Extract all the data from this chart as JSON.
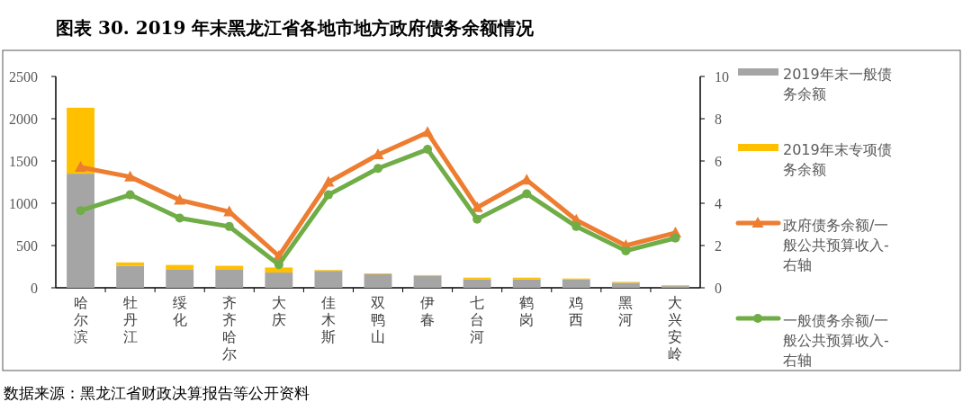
{
  "chart_data": {
    "type": "bar",
    "title": "图表 30. 2019 年末黑龙江省各地市地方政府债务余额情况",
    "stacked": true,
    "legend": "right",
    "grid": false,
    "categories": [
      "哈尔滨",
      "牡丹江",
      "绥化",
      "齐齐哈尔",
      "大庆",
      "佳木斯",
      "双鸭山",
      "伊春",
      "七台河",
      "鹤岗",
      "鸡西",
      "黑河",
      "大兴安岭"
    ],
    "ylim": [
      0,
      2500
    ],
    "yticks": [
      0,
      500,
      1000,
      1500,
      2000,
      2500
    ],
    "y2lim": [
      0,
      10
    ],
    "y2ticks": [
      0,
      2,
      4,
      6,
      8,
      10
    ],
    "series": [
      {
        "name": "2019年末一般债务余额",
        "color": "#a5a5a5",
        "values": [
          1350,
          260,
          220,
          220,
          180,
          200,
          160,
          140,
          100,
          100,
          100,
          60,
          20
        ]
      },
      {
        "name": "2019年末专项债务余额",
        "color": "#ffc000",
        "values": [
          780,
          40,
          50,
          40,
          60,
          10,
          10,
          10,
          20,
          20,
          10,
          10,
          10
        ]
      },
      {
        "name": "政府债务余额/一般公共预算收入-右轴",
        "type": "line",
        "axis": "y2",
        "marker": "triangle",
        "color": "#ed7d31",
        "values": [
          5.7,
          5.25,
          4.15,
          3.6,
          1.5,
          5.0,
          6.3,
          7.35,
          3.8,
          5.1,
          3.2,
          2.0,
          2.6
        ]
      },
      {
        "name": "一般债务余额/一般公共预算收入-右轴",
        "type": "line",
        "axis": "y2",
        "marker": "circle",
        "color": "#70ad47",
        "values": [
          3.65,
          4.4,
          3.3,
          2.9,
          1.1,
          4.4,
          5.65,
          6.55,
          3.25,
          4.45,
          2.9,
          1.75,
          2.35
        ]
      }
    ],
    "annotations": [
      "数据来源：黑龙江省财政决算报告等公开资料"
    ]
  }
}
